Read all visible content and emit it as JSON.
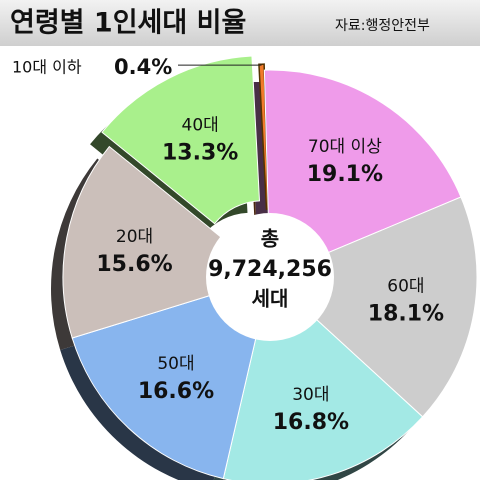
{
  "chart_data": {
    "type": "donut",
    "title": "연령별 1인세대 비율",
    "source": "자료:행정안전부",
    "categories": [
      "10대 이하",
      "70대 이상",
      "60대",
      "30대",
      "50대",
      "20대",
      "40대"
    ],
    "values": [
      0.4,
      19.1,
      18.1,
      16.8,
      16.6,
      15.6,
      13.3
    ],
    "value_labels": [
      "0.4%",
      "19.1%",
      "18.1%",
      "16.8%",
      "16.6%",
      "15.6%",
      "13.3%"
    ],
    "colors": [
      "#f07a2a",
      "#ef9bea",
      "#cdcdcd",
      "#a3e9e5",
      "#88b5ee",
      "#cbbfba",
      "#a9f08c"
    ],
    "exploded": [
      true,
      false,
      false,
      false,
      false,
      false,
      true
    ],
    "center": {
      "top": "총",
      "total": {
        "value": 9724256,
        "label": "9,724,256"
      },
      "bottom": "세대"
    }
  }
}
